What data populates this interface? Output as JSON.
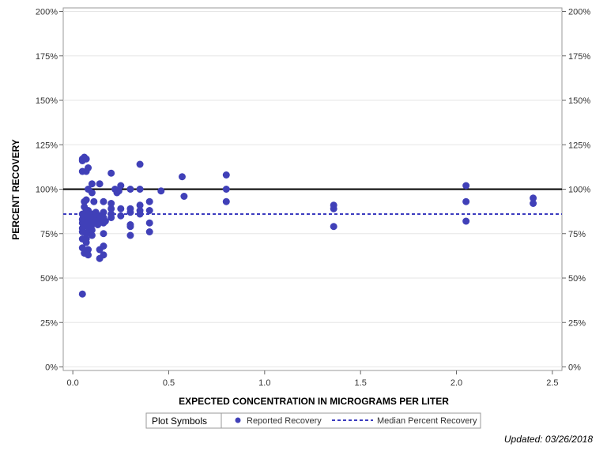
{
  "chart_data": {
    "type": "scatter",
    "xlabel": "EXPECTED CONCENTRATION IN MICROGRAMS PER LITER",
    "ylabel": "PERCENT RECOVERY",
    "xlim": [
      -0.05,
      2.55
    ],
    "ylim": [
      -2,
      202
    ],
    "x_ticks": [
      0.0,
      0.5,
      1.0,
      1.5,
      2.0,
      2.5
    ],
    "x_tick_labels": [
      "0.0",
      "0.5",
      "1.0",
      "1.5",
      "2.0",
      "2.5"
    ],
    "y_ticks": [
      0,
      25,
      50,
      75,
      100,
      125,
      150,
      175,
      200
    ],
    "y_tick_labels": [
      "0%",
      "25%",
      "50%",
      "75%",
      "100%",
      "125%",
      "150%",
      "175%",
      "200%"
    ],
    "reference_line": {
      "name": "100% recovery",
      "y": 100,
      "color": "#000000"
    },
    "median_line": {
      "name": "Median Percent Recovery",
      "y": 86,
      "color": "#3b3bbf"
    },
    "series": [
      {
        "name": "Reported Recovery",
        "color": "#4040b8",
        "points": [
          [
            0.05,
            117
          ],
          [
            0.05,
            116
          ],
          [
            0.06,
            118
          ],
          [
            0.07,
            117
          ],
          [
            0.08,
            112
          ],
          [
            0.07,
            110
          ],
          [
            0.05,
            110
          ],
          [
            0.05,
            86
          ],
          [
            0.05,
            83
          ],
          [
            0.05,
            81
          ],
          [
            0.05,
            78
          ],
          [
            0.05,
            76
          ],
          [
            0.05,
            72
          ],
          [
            0.05,
            67
          ],
          [
            0.06,
            64
          ],
          [
            0.05,
            41
          ],
          [
            0.06,
            93
          ],
          [
            0.07,
            94
          ],
          [
            0.06,
            90
          ],
          [
            0.07,
            88
          ],
          [
            0.06,
            85
          ],
          [
            0.06,
            80
          ],
          [
            0.07,
            75
          ],
          [
            0.07,
            72
          ],
          [
            0.07,
            70
          ],
          [
            0.08,
            100
          ],
          [
            0.08,
            88
          ],
          [
            0.08,
            85
          ],
          [
            0.08,
            82
          ],
          [
            0.08,
            79
          ],
          [
            0.08,
            76
          ],
          [
            0.08,
            66
          ],
          [
            0.08,
            63
          ],
          [
            0.1,
            103
          ],
          [
            0.1,
            98
          ],
          [
            0.1,
            86
          ],
          [
            0.1,
            83
          ],
          [
            0.1,
            80
          ],
          [
            0.1,
            77
          ],
          [
            0.1,
            74
          ],
          [
            0.11,
            93
          ],
          [
            0.12,
            87
          ],
          [
            0.12,
            84
          ],
          [
            0.12,
            82
          ],
          [
            0.13,
            80
          ],
          [
            0.14,
            103
          ],
          [
            0.14,
            85
          ],
          [
            0.14,
            83
          ],
          [
            0.14,
            66
          ],
          [
            0.14,
            61
          ],
          [
            0.16,
            93
          ],
          [
            0.16,
            87
          ],
          [
            0.16,
            84
          ],
          [
            0.16,
            81
          ],
          [
            0.16,
            75
          ],
          [
            0.16,
            68
          ],
          [
            0.16,
            63
          ],
          [
            0.17,
            82
          ],
          [
            0.2,
            109
          ],
          [
            0.2,
            92
          ],
          [
            0.2,
            89
          ],
          [
            0.2,
            86
          ],
          [
            0.2,
            84
          ],
          [
            0.22,
            100
          ],
          [
            0.23,
            98
          ],
          [
            0.24,
            99
          ],
          [
            0.25,
            102
          ],
          [
            0.25,
            89
          ],
          [
            0.25,
            85
          ],
          [
            0.3,
            100
          ],
          [
            0.3,
            89
          ],
          [
            0.3,
            87
          ],
          [
            0.3,
            80
          ],
          [
            0.3,
            79
          ],
          [
            0.3,
            74
          ],
          [
            0.35,
            114
          ],
          [
            0.35,
            100
          ],
          [
            0.35,
            91
          ],
          [
            0.35,
            88
          ],
          [
            0.35,
            86
          ],
          [
            0.4,
            93
          ],
          [
            0.4,
            88
          ],
          [
            0.4,
            81
          ],
          [
            0.4,
            76
          ],
          [
            0.46,
            99
          ],
          [
            0.57,
            107
          ],
          [
            0.58,
            96
          ],
          [
            0.8,
            108
          ],
          [
            0.8,
            100
          ],
          [
            0.8,
            93
          ],
          [
            1.36,
            91
          ],
          [
            1.36,
            89
          ],
          [
            1.36,
            79
          ],
          [
            2.05,
            102
          ],
          [
            2.05,
            93
          ],
          [
            2.05,
            82
          ],
          [
            2.4,
            95
          ],
          [
            2.4,
            92
          ]
        ]
      }
    ],
    "legend": {
      "title": "Plot Symbols",
      "position": "bottom-center",
      "entries": [
        {
          "label": "Reported Recovery",
          "symbol": "circle"
        },
        {
          "label": "Median Percent Recovery",
          "symbol": "dashed-line"
        }
      ]
    }
  },
  "footer": {
    "updated": "Updated: 03/26/2018"
  }
}
